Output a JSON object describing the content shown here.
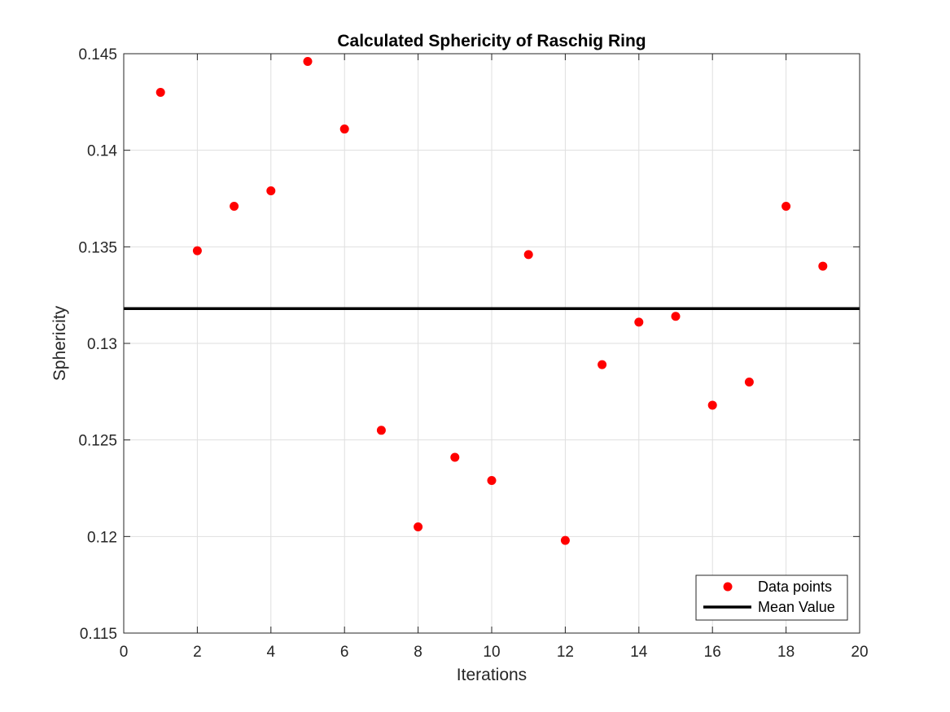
{
  "chart_data": {
    "type": "scatter",
    "title": "Calculated Sphericity of Raschig Ring",
    "xlabel": "Iterations",
    "ylabel": "Sphericity",
    "xlim": [
      0,
      20
    ],
    "ylim": [
      0.115,
      0.145
    ],
    "xticks": [
      0,
      2,
      4,
      6,
      8,
      10,
      12,
      14,
      16,
      18,
      20
    ],
    "yticks": [
      0.115,
      0.12,
      0.125,
      0.13,
      0.135,
      0.14,
      0.145
    ],
    "ytick_labels": [
      "0.115",
      "0.12",
      "0.125",
      "0.13",
      "0.135",
      "0.14",
      "0.145"
    ],
    "grid": true,
    "legend_position": "bottom-right",
    "series": [
      {
        "name": "Data points",
        "kind": "points",
        "color": "#ff0000",
        "x": [
          1,
          2,
          3,
          4,
          5,
          6,
          7,
          8,
          9,
          10,
          11,
          12,
          13,
          14,
          15,
          16,
          17,
          18,
          19
        ],
        "y": [
          0.143,
          0.1348,
          0.1371,
          0.1379,
          0.1446,
          0.1411,
          0.1255,
          0.1205,
          0.1241,
          0.1229,
          0.1346,
          0.1198,
          0.1289,
          0.1311,
          0.1314,
          0.1268,
          0.128,
          0.1371,
          0.134
        ]
      },
      {
        "name": "Mean Value",
        "kind": "hline",
        "color": "#000000",
        "y": 0.1318
      }
    ]
  }
}
